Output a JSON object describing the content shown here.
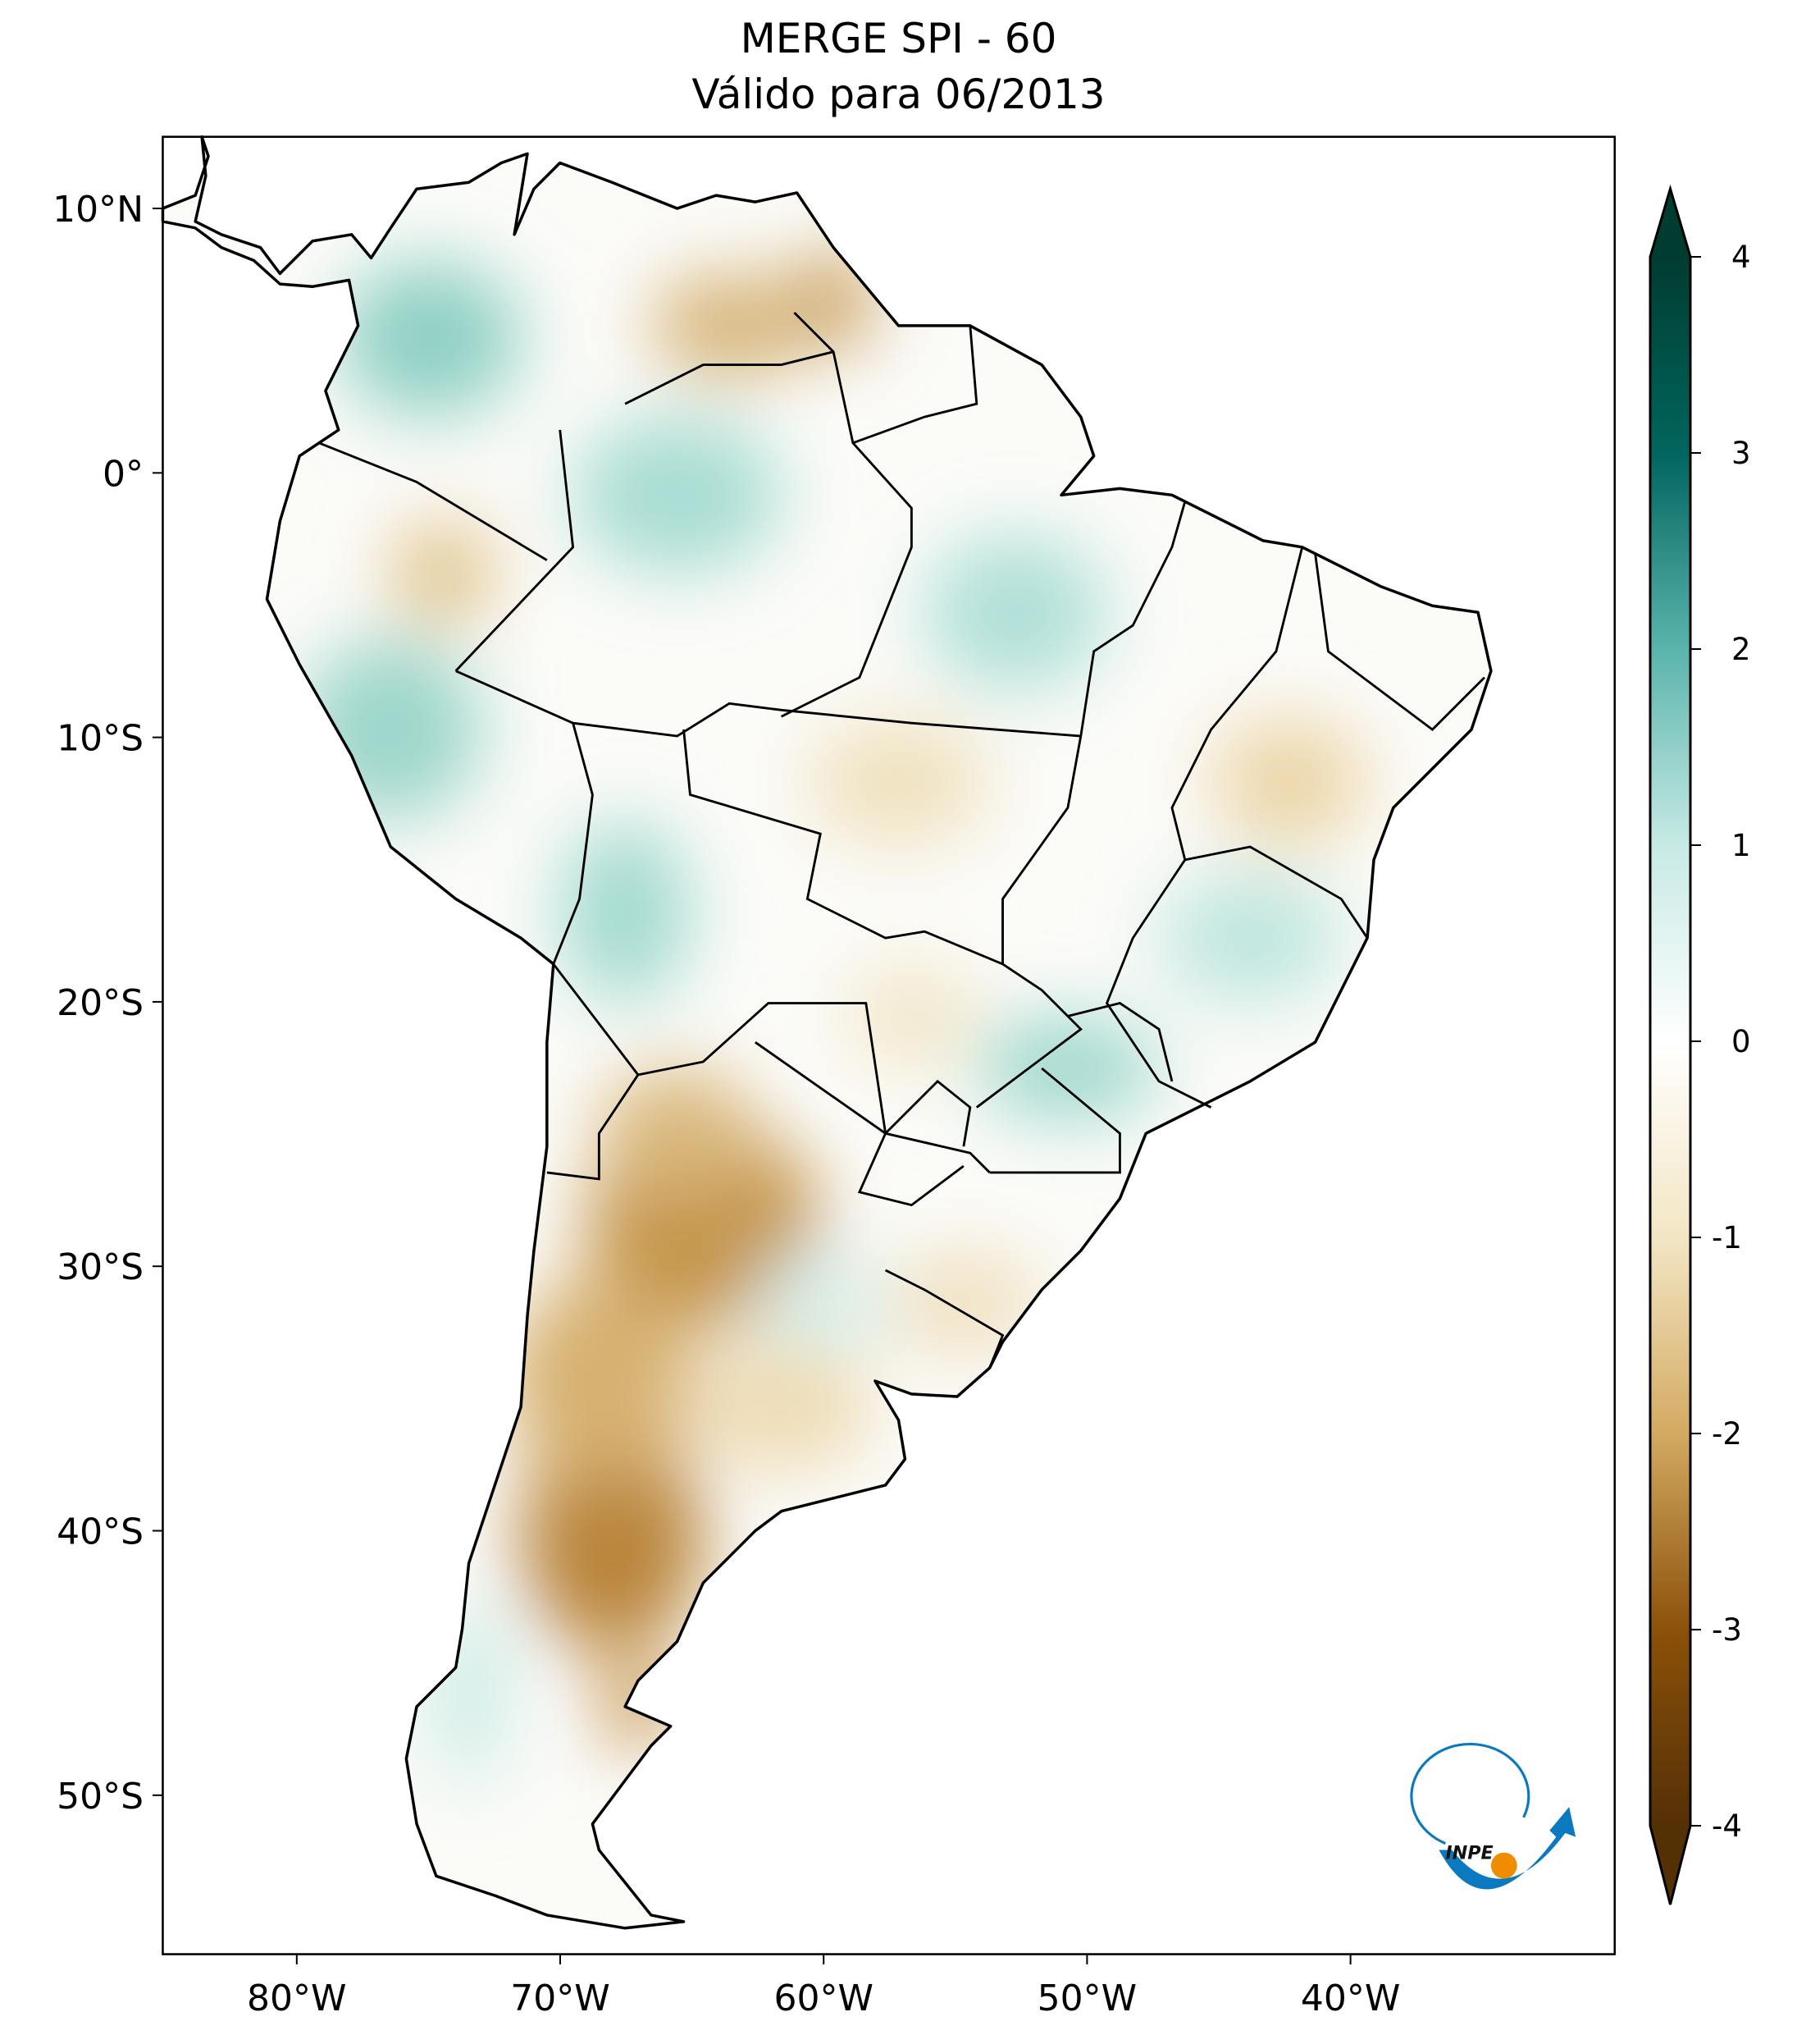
{
  "title": {
    "line1": "MERGE   SPI - 60",
    "line2": "Válido para 06/2013"
  },
  "map": {
    "lon_range": [
      -85.1,
      -30.0
    ],
    "lat_range": [
      -56.1,
      12.7
    ],
    "lon_ticks": [
      {
        "value": -80,
        "label": "80°W"
      },
      {
        "value": -70,
        "label": "70°W"
      },
      {
        "value": -60,
        "label": "60°W"
      },
      {
        "value": -50,
        "label": "50°W"
      },
      {
        "value": -40,
        "label": "40°W"
      }
    ],
    "lat_ticks": [
      {
        "value": 10,
        "label": "10°N"
      },
      {
        "value": 0,
        "label": "0°"
      },
      {
        "value": -10,
        "label": "10°S"
      },
      {
        "value": -20,
        "label": "20°S"
      },
      {
        "value": -30,
        "label": "30°S"
      },
      {
        "value": -40,
        "label": "40°S"
      },
      {
        "value": -50,
        "label": "50°S"
      }
    ]
  },
  "colorbar": {
    "range": [
      -4,
      4
    ],
    "extend": "both",
    "ticks": [
      {
        "value": 4,
        "label": "4"
      },
      {
        "value": 3,
        "label": "3"
      },
      {
        "value": 2,
        "label": "2"
      },
      {
        "value": 1,
        "label": "1"
      },
      {
        "value": 0,
        "label": "0"
      },
      {
        "value": -1,
        "label": "-1"
      },
      {
        "value": -2,
        "label": "-2"
      },
      {
        "value": -3,
        "label": "-3"
      },
      {
        "value": -4,
        "label": "-4"
      }
    ],
    "colors": {
      "-4": "#543005",
      "-3": "#8c510a",
      "-2": "#d3aa62",
      "-1": "#f3e6c4",
      "0": "#ffffff",
      "1": "#c7eae5",
      "2": "#5ab4ac",
      "3": "#01665e",
      "4": "#003c30"
    }
  },
  "logo": {
    "text": "INPE",
    "blue": "#0b79c0",
    "orange": "#f08c00"
  }
}
